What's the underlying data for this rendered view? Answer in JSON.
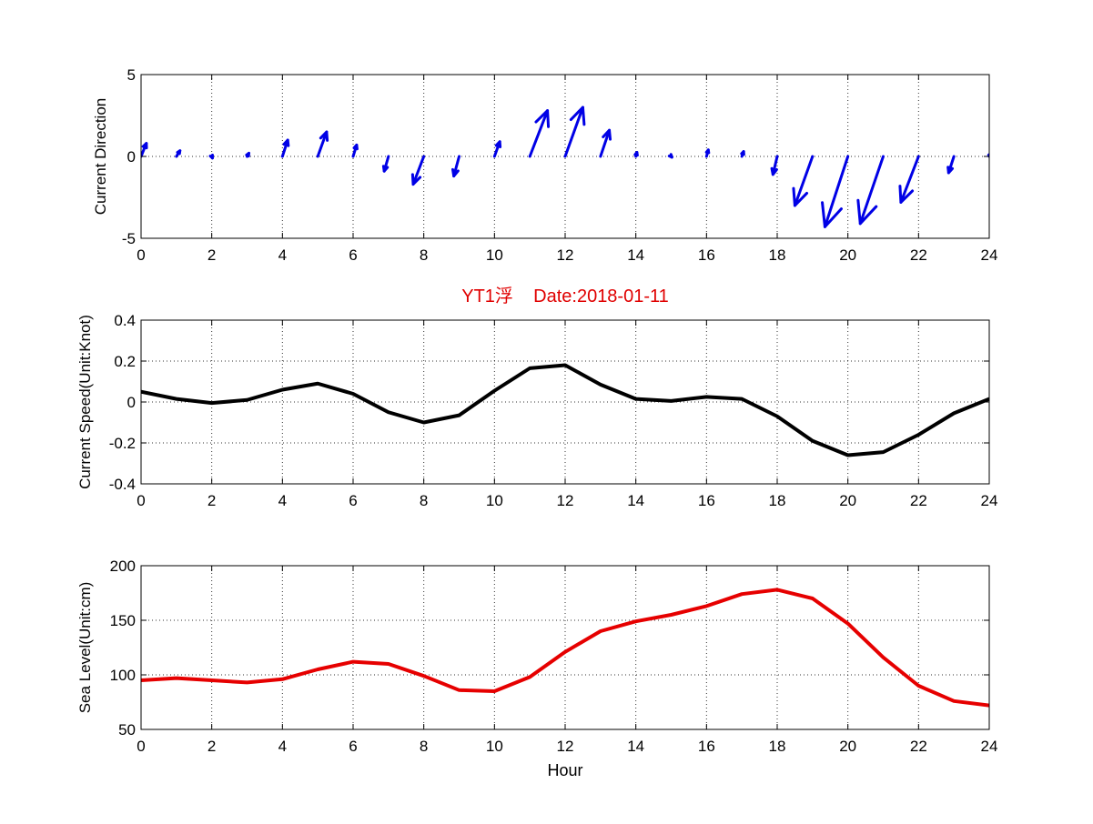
{
  "title": "YT1浮    Date:2018-01-11",
  "title_color": "#e00000",
  "xlabel": "Hour",
  "chart_data": [
    {
      "type": "quiver",
      "ylabel": "Current Direction",
      "xlim": [
        0,
        24
      ],
      "ylim": [
        -5,
        5
      ],
      "xticks": [
        0,
        2,
        4,
        6,
        8,
        10,
        12,
        14,
        16,
        18,
        20,
        22,
        24
      ],
      "yticks": [
        5,
        0,
        -5
      ],
      "grid": true,
      "color": "#0000e6",
      "x": [
        0,
        1,
        2,
        3,
        4,
        5,
        6,
        7,
        8,
        9,
        10,
        11,
        12,
        13,
        14,
        15,
        16,
        17,
        18,
        19,
        20,
        21,
        22,
        23,
        24
      ],
      "u": [
        0.15,
        0.1,
        0.02,
        0.05,
        0.15,
        0.25,
        0.1,
        -0.12,
        -0.3,
        -0.15,
        0.15,
        0.5,
        0.5,
        0.25,
        0.03,
        0.02,
        0.05,
        0.05,
        -0.12,
        -0.5,
        -0.65,
        -0.65,
        -0.5,
        -0.15,
        0.05
      ],
      "v": [
        0.8,
        0.35,
        -0.1,
        0.2,
        1.0,
        1.5,
        0.7,
        -0.9,
        -1.7,
        -1.2,
        0.9,
        2.8,
        3.0,
        1.6,
        0.25,
        -0.05,
        0.4,
        0.3,
        -1.1,
        -3.0,
        -4.3,
        -4.1,
        -2.8,
        -1.0,
        0.2
      ]
    },
    {
      "type": "line",
      "ylabel": "Current Speed(Unit:Knot)",
      "xlim": [
        0,
        24
      ],
      "ylim": [
        -0.4,
        0.4
      ],
      "xticks": [
        0,
        2,
        4,
        6,
        8,
        10,
        12,
        14,
        16,
        18,
        20,
        22,
        24
      ],
      "yticks": [
        0.4,
        0.2,
        0,
        -0.2,
        -0.4
      ],
      "grid": true,
      "color": "#000000",
      "x": [
        0,
        1,
        2,
        3,
        4,
        5,
        6,
        7,
        8,
        9,
        10,
        11,
        12,
        13,
        14,
        15,
        16,
        17,
        18,
        19,
        20,
        21,
        22,
        23,
        24
      ],
      "y": [
        0.05,
        0.015,
        -0.005,
        0.01,
        0.06,
        0.09,
        0.04,
        -0.05,
        -0.1,
        -0.065,
        0.055,
        0.165,
        0.18,
        0.085,
        0.015,
        0.005,
        0.025,
        0.015,
        -0.07,
        -0.19,
        -0.26,
        -0.245,
        -0.16,
        -0.055,
        0.015
      ]
    },
    {
      "type": "line",
      "ylabel": "Sea Level(Unit:cm)",
      "xlim": [
        0,
        24
      ],
      "ylim": [
        50,
        200
      ],
      "xticks": [
        0,
        2,
        4,
        6,
        8,
        10,
        12,
        14,
        16,
        18,
        20,
        22,
        24
      ],
      "yticks": [
        200,
        150,
        100,
        50
      ],
      "grid": true,
      "color": "#e60000",
      "x": [
        0,
        1,
        2,
        3,
        4,
        5,
        6,
        7,
        8,
        9,
        10,
        11,
        12,
        13,
        14,
        15,
        16,
        17,
        18,
        19,
        20,
        21,
        22,
        23,
        24
      ],
      "y": [
        95,
        97,
        95,
        93,
        96,
        105,
        112,
        110,
        99,
        86,
        85,
        98,
        121,
        140,
        149,
        155,
        163,
        174,
        178,
        170,
        147,
        116,
        90,
        76,
        72
      ]
    }
  ]
}
